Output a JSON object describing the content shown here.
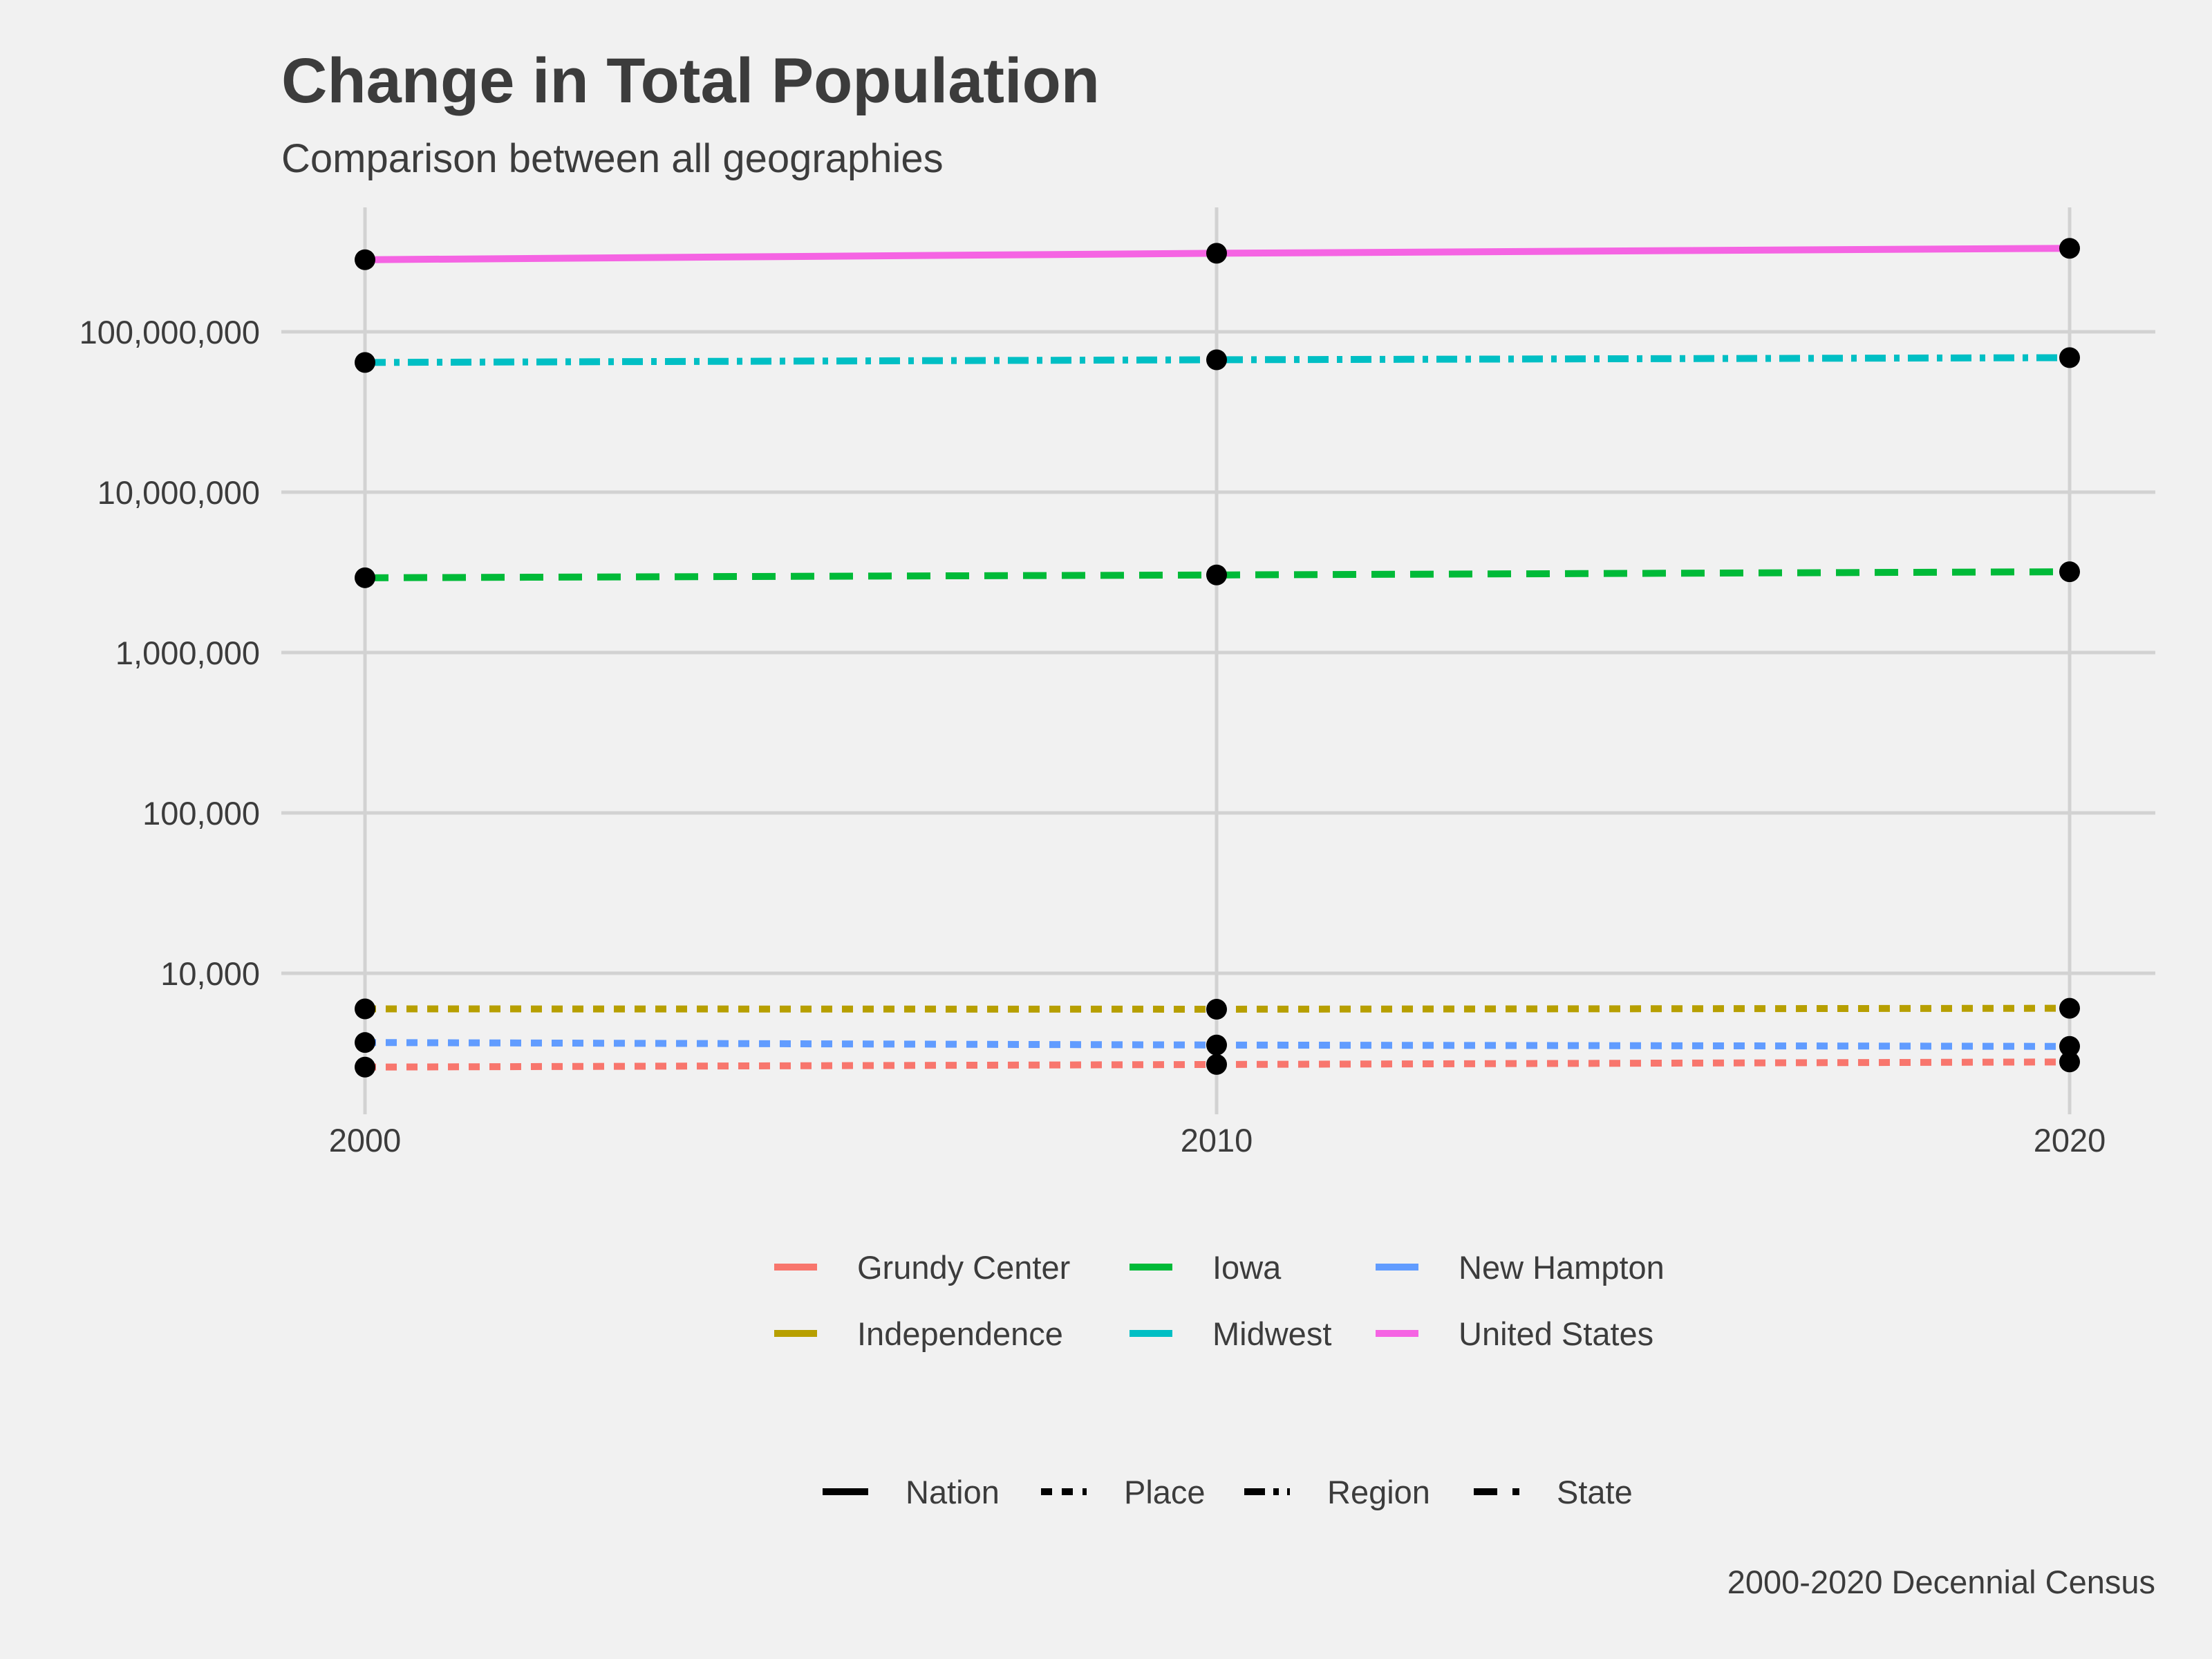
{
  "chart_data": {
    "type": "line",
    "title": "Change in Total Population",
    "subtitle": "Comparison between all geographies",
    "caption": "2000-2020 Decennial Census",
    "xlabel": "",
    "ylabel": "",
    "x": [
      2000,
      2010,
      2020
    ],
    "x_tick_labels": [
      "2000",
      "2010",
      "2020"
    ],
    "y_scale": "log10",
    "y_tick_labels": [
      "10,000",
      "100,000",
      "1,000,000",
      "10,000,000",
      "100,000,000"
    ],
    "grid": true,
    "legend_placement": "bottom",
    "series": [
      {
        "name": "Grundy Center",
        "geography_type": "Place",
        "color": "#F8766D",
        "values": [
          2600,
          2700,
          2800
        ]
      },
      {
        "name": "Independence",
        "geography_type": "Place",
        "color": "#B79F00",
        "values": [
          6000,
          5970,
          6050
        ]
      },
      {
        "name": "Iowa",
        "geography_type": "State",
        "color": "#00BA38",
        "values": [
          2926324,
          3046355,
          3190369
        ]
      },
      {
        "name": "Midwest",
        "geography_type": "Region",
        "color": "#00BFC4",
        "values": [
          64392776,
          66927001,
          68985454
        ]
      },
      {
        "name": "New Hampton",
        "geography_type": "Place",
        "color": "#619CFF",
        "values": [
          3700,
          3570,
          3500
        ]
      },
      {
        "name": "United States",
        "geography_type": "Nation",
        "color": "#F564E3",
        "values": [
          281421906,
          308745538,
          331449281
        ]
      }
    ],
    "linetype_legend": [
      "Nation",
      "Place",
      "Region",
      "State"
    ]
  }
}
